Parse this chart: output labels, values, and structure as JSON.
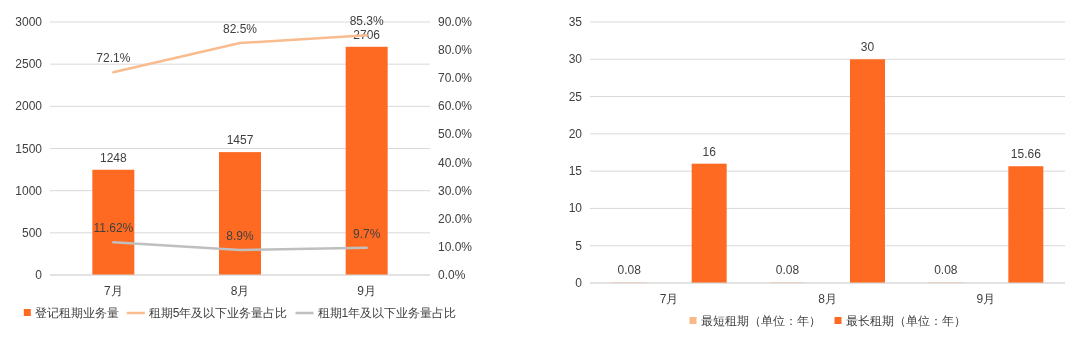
{
  "chart_data": [
    {
      "type": "bar",
      "categories": [
        "7月",
        "8月",
        "9月"
      ],
      "ylim": [
        0,
        3000
      ],
      "yticks": [
        0,
        500,
        1000,
        1500,
        2000,
        2500,
        3000
      ],
      "y2lim": [
        0,
        90
      ],
      "y2ticks": [
        {
          "value": 0,
          "label": "0.0%"
        },
        {
          "value": 10,
          "label": "10.0%"
        },
        {
          "value": 20,
          "label": "20.0%"
        },
        {
          "value": 30,
          "label": "30.0%"
        },
        {
          "value": 40,
          "label": "40.0%"
        },
        {
          "value": 50,
          "label": "50.0%"
        },
        {
          "value": 60,
          "label": "60.0%"
        },
        {
          "value": 70,
          "label": "70.0%"
        },
        {
          "value": 80,
          "label": "80.0%"
        },
        {
          "value": 90,
          "label": "90.0%"
        }
      ],
      "grid": "y",
      "legend": "bottom",
      "data_labels": true,
      "marker": "none",
      "series": [
        {
          "name": "登记租期业务量",
          "color": "#ff6a22",
          "values": [
            1248,
            1457,
            2706
          ]
        },
        {
          "name": "租期5年及以下业务量占比",
          "type": "line",
          "axis": "y2",
          "color": "#f8bc8e",
          "values": [
            72.1,
            82.5,
            85.3
          ],
          "value_labels": [
            "72.1%",
            "82.5%",
            "85.3%"
          ]
        },
        {
          "name": "租期1年及以下业务量占比",
          "type": "line",
          "axis": "y2",
          "color": "#bfbfbf",
          "values": [
            11.62,
            8.9,
            9.7
          ],
          "value_labels": [
            "11.62%",
            "8.9%",
            "9.7%"
          ]
        }
      ]
    },
    {
      "type": "bar",
      "categories": [
        "7月",
        "8月",
        "9月"
      ],
      "ylim": [
        0,
        35
      ],
      "yticks": [
        0,
        5,
        10,
        15,
        20,
        25,
        30,
        35
      ],
      "grid": "y",
      "legend": "bottom",
      "data_labels": true,
      "series": [
        {
          "name": "最短租期（单位：年）",
          "color": "#f8b88a",
          "values": [
            0.08,
            0.08,
            0.08
          ]
        },
        {
          "name": "最长租期（单位：年）",
          "color": "#ff6a22",
          "values": [
            16,
            30,
            15.66
          ]
        }
      ]
    }
  ]
}
